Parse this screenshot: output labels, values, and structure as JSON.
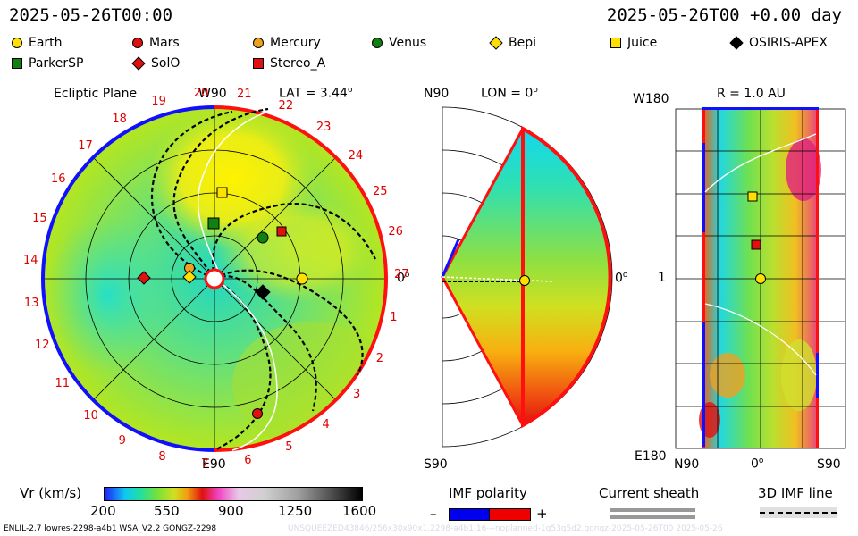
{
  "header": {
    "timestamp_left": "2025-05-26T00:00",
    "timestamp_right": "2025-05-26T00 +0.00 day"
  },
  "legend": {
    "bodies": [
      {
        "label": "Earth",
        "shape": "circle",
        "color": "#ffe000"
      },
      {
        "label": "Mars",
        "shape": "circle",
        "color": "#e01010"
      },
      {
        "label": "Mercury",
        "shape": "circle",
        "color": "#f0a020"
      },
      {
        "label": "Venus",
        "shape": "circle",
        "color": "#108010"
      },
      {
        "label": "Bepi",
        "shape": "diamond",
        "color": "#ffe000"
      },
      {
        "label": "Juice",
        "shape": "square",
        "color": "#ffe000"
      },
      {
        "label": "OSIRIS-APEX",
        "shape": "diamond",
        "color": "#000000"
      },
      {
        "label": "ParkerSP",
        "shape": "square",
        "color": "#108010"
      },
      {
        "label": "SolO",
        "shape": "diamond",
        "color": "#e01010"
      },
      {
        "label": "Stereo_A",
        "shape": "square",
        "color": "#e01010"
      }
    ]
  },
  "ecliptic": {
    "title": "Ecliptic Plane",
    "top_label": "W90",
    "bottom_label": "E90",
    "right_label": "0",
    "lat_label": "LAT = 3.44",
    "carrington_ticks": [
      "1",
      "2",
      "3",
      "4",
      "5",
      "6",
      "7",
      "8",
      "9",
      "10",
      "11",
      "12",
      "13",
      "14",
      "15",
      "16",
      "17",
      "18",
      "19",
      "20",
      "21",
      "22",
      "23",
      "24",
      "25",
      "26",
      "27"
    ]
  },
  "meridional": {
    "top_label": "N90",
    "bottom_label": "S90",
    "right_label": "0",
    "lon_label": "LON = 0"
  },
  "radial": {
    "title": "R = 1.0 AU",
    "top_left_label": "W180",
    "mid_left_label": "1",
    "bottom_left_label": "E180",
    "bottom_labels": [
      "N90",
      "0",
      "S90"
    ]
  },
  "colorbar": {
    "label": "Vr (km/s)",
    "ticks": [
      "200",
      "550",
      "900",
      "1250",
      "1600"
    ]
  },
  "imf": {
    "polarity_label": "IMF polarity",
    "minus": "–",
    "plus": "+",
    "sheath_label": "Current sheath",
    "line_label": "3D IMF line"
  },
  "footer": {
    "left": "ENLIL-2.7 lowres-2298-a4b1 WSA_V2.2 GONGZ-2298",
    "right": "UNSQUEEZED43846/256x30x90x1.2298-a4b1.16---noplanned-1g53q5d2.gongz-2025-05-26T00    2025-05-26"
  },
  "colors": {
    "polarity_negative": "#0000ee",
    "polarity_positive": "#ee0000"
  }
}
